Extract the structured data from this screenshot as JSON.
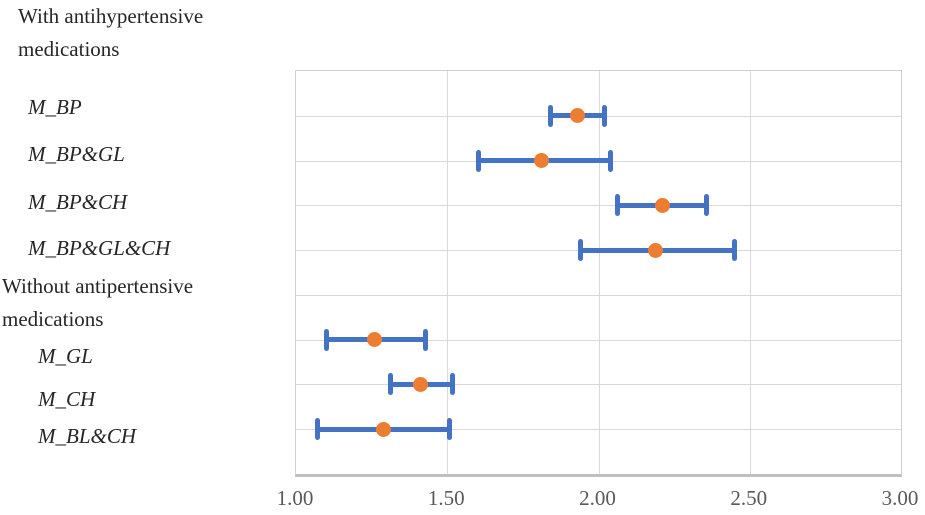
{
  "chart_data": {
    "type": "scatter",
    "subtype": "forest-plot-errorbar",
    "title": "",
    "xlabel": "",
    "ylabel": "",
    "x_range": [
      1.0,
      3.0
    ],
    "x_ticks": [
      "1.00",
      "1.50",
      "2.00",
      "2.50",
      "3.00"
    ],
    "x_tick_values": [
      1.0,
      1.5,
      2.0,
      2.5,
      3.0
    ],
    "grid": true,
    "rows_total": 9,
    "legend": "none",
    "series": [
      {
        "label": "M_BP",
        "group": "With antihypertensive medications",
        "row": 1,
        "value": 1.93,
        "ci_low": 1.84,
        "ci_high": 2.02
      },
      {
        "label": "M_BP&GL",
        "group": "With antihypertensive medications",
        "row": 2,
        "value": 1.81,
        "ci_low": 1.6,
        "ci_high": 2.04
      },
      {
        "label": "M_BP&CH",
        "group": "With antihypertensive medications",
        "row": 3,
        "value": 2.21,
        "ci_low": 2.06,
        "ci_high": 2.36
      },
      {
        "label": "M_BP&GL&CH",
        "group": "With antihypertensive medications",
        "row": 4,
        "value": 2.19,
        "ci_low": 1.94,
        "ci_high": 2.45
      },
      {
        "label": "M_GL",
        "group": "Without antipertensive medications",
        "row": 6,
        "value": 1.26,
        "ci_low": 1.1,
        "ci_high": 1.43
      },
      {
        "label": "M_CH",
        "group": "Without antipertensive medications",
        "row": 7,
        "value": 1.41,
        "ci_low": 1.31,
        "ci_high": 1.52
      },
      {
        "label": "M_BL&CH",
        "group": "Without antipertensive medications",
        "row": 8,
        "value": 1.29,
        "ci_low": 1.07,
        "ci_high": 1.51
      }
    ],
    "colors": {
      "marker": "#ED7D31",
      "error_bar": "#4472C4",
      "gridline": "#D9D9D9",
      "axis_line": "#BFBFBF",
      "tick_text": "#595959",
      "label_text": "#262626"
    }
  },
  "left_labels": [
    {
      "text": "With antihypertensive",
      "kind": "group-header"
    },
    {
      "text": "medications",
      "kind": "group-header"
    },
    {
      "text": "M_BP",
      "kind": "series"
    },
    {
      "text": "M_BP&GL",
      "kind": "series"
    },
    {
      "text": "M_BP&CH",
      "kind": "series"
    },
    {
      "text": "M_BP&GL&CH",
      "kind": "series"
    },
    {
      "text": "Without antipertensive",
      "kind": "group-header"
    },
    {
      "text": "medications",
      "kind": "group-header"
    },
    {
      "text": "M_GL",
      "kind": "series"
    },
    {
      "text": "M_CH",
      "kind": "series"
    },
    {
      "text": "M_BL&CH",
      "kind": "series"
    }
  ]
}
